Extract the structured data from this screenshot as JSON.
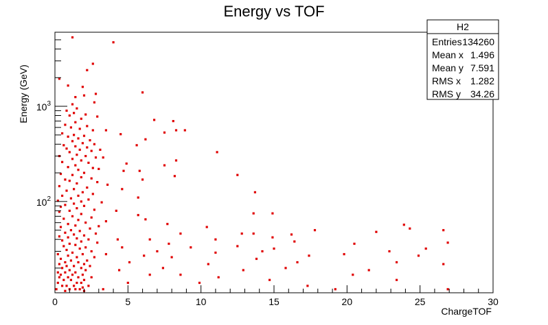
{
  "chart_data": {
    "type": "scatter",
    "title": "Energy vs TOF",
    "xlabel": "ChargeTOF",
    "ylabel": "Energy (GeV)",
    "xlim": [
      0,
      30
    ],
    "ylim": [
      11,
      6000
    ],
    "yscale": "log",
    "x_ticks": [
      0,
      5,
      10,
      15,
      20,
      25,
      30
    ],
    "y_tick_labels": [
      {
        "label": "10^2",
        "base": "10",
        "exp": "2",
        "value": 100
      },
      {
        "label": "10^3",
        "base": "10",
        "exp": "3",
        "value": 1000
      }
    ],
    "grid": false,
    "point_color": "#e00000",
    "stats": {
      "title": "H2",
      "rows": [
        {
          "label": "Entries",
          "value": "134260"
        },
        {
          "label": "Mean x",
          "value": "1.496"
        },
        {
          "label": "Mean y",
          "value": "7.591"
        },
        {
          "label": "RMS x",
          "value": "1.282"
        },
        {
          "label": "RMS y",
          "value": "34.26"
        }
      ]
    },
    "points": [
      [
        1.2,
        5300
      ],
      [
        4.0,
        4700
      ],
      [
        2.6,
        2800
      ],
      [
        2.2,
        2400
      ],
      [
        6.0,
        1400
      ],
      [
        0.3,
        1950
      ],
      [
        0.9,
        1650
      ],
      [
        1.9,
        1600
      ],
      [
        2.8,
        1350
      ],
      [
        1.4,
        1250
      ],
      [
        2.0,
        1300
      ],
      [
        2.7,
        1100
      ],
      [
        1.2,
        1050
      ],
      [
        1.5,
        950
      ],
      [
        0.8,
        900
      ],
      [
        1.3,
        850
      ],
      [
        2.1,
        820
      ],
      [
        1.0,
        800
      ],
      [
        2.9,
        780
      ],
      [
        1.8,
        740
      ],
      [
        6.8,
        720
      ],
      [
        8.1,
        700
      ],
      [
        1.4,
        680
      ],
      [
        0.7,
        640
      ],
      [
        2.2,
        620
      ],
      [
        1.1,
        600
      ],
      [
        1.7,
        580
      ],
      [
        2.6,
        560
      ],
      [
        3.5,
        560
      ],
      [
        8.3,
        560
      ],
      [
        8.9,
        560
      ],
      [
        0.5,
        520
      ],
      [
        1.3,
        500
      ],
      [
        2.0,
        490
      ],
      [
        4.5,
        510
      ],
      [
        7.5,
        530
      ],
      [
        0.9,
        480
      ],
      [
        1.6,
        460
      ],
      [
        2.4,
        440
      ],
      [
        1.2,
        430
      ],
      [
        6.2,
        450
      ],
      [
        1.9,
        410
      ],
      [
        2.7,
        400
      ],
      [
        0.6,
        390
      ],
      [
        5.6,
        390
      ],
      [
        1.4,
        380
      ],
      [
        2.2,
        370
      ],
      [
        0.8,
        360
      ],
      [
        1.7,
        350
      ],
      [
        3.1,
        350
      ],
      [
        2.5,
        340
      ],
      [
        11.1,
        330
      ],
      [
        1.0,
        330
      ],
      [
        1.5,
        310
      ],
      [
        2.1,
        300
      ],
      [
        0.3,
        300
      ],
      [
        2.8,
        290
      ],
      [
        3.3,
        290
      ],
      [
        1.2,
        280
      ],
      [
        1.8,
        270
      ],
      [
        8.3,
        270
      ],
      [
        0.5,
        260
      ],
      [
        2.3,
        255
      ],
      [
        4.9,
        250
      ],
      [
        1.4,
        240
      ],
      [
        7.5,
        240
      ],
      [
        0.9,
        230
      ],
      [
        2.6,
        225
      ],
      [
        3.0,
        220
      ],
      [
        1.6,
        215
      ],
      [
        4.7,
        210
      ],
      [
        5.8,
        210
      ],
      [
        2.0,
        200
      ],
      [
        0.4,
        195
      ],
      [
        1.2,
        190
      ],
      [
        12.5,
        190
      ],
      [
        8.2,
        185
      ],
      [
        1.8,
        180
      ],
      [
        2.5,
        175
      ],
      [
        0.7,
        170
      ],
      [
        6.0,
        170
      ],
      [
        1.0,
        165
      ],
      [
        2.9,
        160
      ],
      [
        1.5,
        155
      ],
      [
        3.6,
        150
      ],
      [
        0.3,
        145
      ],
      [
        2.2,
        140
      ],
      [
        1.3,
        135
      ],
      [
        4.6,
        135
      ],
      [
        0.8,
        130
      ],
      [
        1.9,
        125
      ],
      [
        13.7,
        125
      ],
      [
        2.6,
        120
      ],
      [
        0.5,
        115
      ],
      [
        1.6,
        115
      ],
      [
        5.7,
        110
      ],
      [
        1.1,
        108
      ],
      [
        2.3,
        105
      ],
      [
        0.2,
        102
      ],
      [
        1.8,
        100
      ],
      [
        3.2,
        98
      ],
      [
        1.3,
        95
      ],
      [
        0.7,
        92
      ],
      [
        2.0,
        90
      ],
      [
        0.4,
        88
      ],
      [
        1.5,
        85
      ],
      [
        2.7,
        82
      ],
      [
        1.0,
        80
      ],
      [
        4.2,
        80
      ],
      [
        0.3,
        78
      ],
      [
        13.6,
        75
      ],
      [
        14.9,
        75
      ],
      [
        1.8,
        74
      ],
      [
        5.7,
        72
      ],
      [
        1.2,
        70
      ],
      [
        2.5,
        68
      ],
      [
        0.6,
        66
      ],
      [
        6.2,
        65
      ],
      [
        1.6,
        64
      ],
      [
        3.5,
        62
      ],
      [
        2.1,
        60
      ],
      [
        0.9,
        58
      ],
      [
        7.7,
        58
      ],
      [
        1.4,
        56
      ],
      [
        3.0,
        55
      ],
      [
        23.9,
        57
      ],
      [
        0.4,
        54
      ],
      [
        10.4,
        54
      ],
      [
        2.4,
        52
      ],
      [
        1.1,
        50
      ],
      [
        17.8,
        50
      ],
      [
        26.6,
        50
      ],
      [
        1.7,
        49
      ],
      [
        22.0,
        48
      ],
      [
        24.3,
        52
      ],
      [
        0.7,
        47
      ],
      [
        2.8,
        46
      ],
      [
        12.8,
        46
      ],
      [
        1.3,
        45
      ],
      [
        13.6,
        46
      ],
      [
        8.6,
        46
      ],
      [
        2.0,
        44
      ],
      [
        0.3,
        43
      ],
      [
        0.9,
        42
      ],
      [
        14.9,
        42
      ],
      [
        16.2,
        45
      ],
      [
        1.5,
        41
      ],
      [
        4.3,
        40
      ],
      [
        2.3,
        40
      ],
      [
        6.5,
        40
      ],
      [
        11.0,
        40
      ],
      [
        0.5,
        39
      ],
      [
        1.8,
        38
      ],
      [
        16.4,
        38
      ],
      [
        2.9,
        37
      ],
      [
        1.0,
        36
      ],
      [
        7.8,
        36
      ],
      [
        20.5,
        36
      ],
      [
        26.9,
        37
      ],
      [
        1.4,
        35
      ],
      [
        0.6,
        34
      ],
      [
        2.1,
        33
      ],
      [
        12.5,
        34
      ],
      [
        4.6,
        33
      ],
      [
        1.7,
        32
      ],
      [
        9.3,
        33
      ],
      [
        15.0,
        32
      ],
      [
        0.8,
        31
      ],
      [
        2.5,
        30
      ],
      [
        14.2,
        30
      ],
      [
        7.0,
        30
      ],
      [
        1.2,
        29
      ],
      [
        22.9,
        30
      ],
      [
        25.4,
        32
      ],
      [
        0.2,
        28
      ],
      [
        1.9,
        28
      ],
      [
        11.0,
        29
      ],
      [
        3.5,
        28
      ],
      [
        0.9,
        27
      ],
      [
        6.1,
        27
      ],
      [
        19.8,
        28
      ],
      [
        1.5,
        26
      ],
      [
        2.7,
        26
      ],
      [
        17.4,
        27
      ],
      [
        0.4,
        25
      ],
      [
        8.0,
        26
      ],
      [
        24.9,
        27
      ],
      [
        1.1,
        24
      ],
      [
        2.2,
        24
      ],
      [
        13.8,
        25
      ],
      [
        0.7,
        23
      ],
      [
        16.6,
        23
      ],
      [
        1.6,
        23
      ],
      [
        5.1,
        23
      ],
      [
        23.4,
        23
      ],
      [
        2.0,
        22
      ],
      [
        0.3,
        22
      ],
      [
        1.3,
        21
      ],
      [
        10.5,
        22
      ],
      [
        26.6,
        22
      ],
      [
        0.8,
        21
      ],
      [
        2.4,
        21
      ],
      [
        1.8,
        20
      ],
      [
        7.4,
        20
      ],
      [
        0.5,
        20
      ],
      [
        15.8,
        20
      ],
      [
        1.0,
        19
      ],
      [
        21.5,
        19
      ],
      [
        2.1,
        19
      ],
      [
        0.2,
        18
      ],
      [
        4.4,
        19
      ],
      [
        1.4,
        18
      ],
      [
        12.9,
        19
      ],
      [
        0.7,
        18
      ],
      [
        1.9,
        17
      ],
      [
        0.4,
        17
      ],
      [
        1.2,
        17
      ],
      [
        20.4,
        17
      ],
      [
        2.5,
        16
      ],
      [
        0.9,
        16
      ],
      [
        6.5,
        17
      ],
      [
        8.6,
        17
      ],
      [
        1.6,
        16
      ],
      [
        0.3,
        16
      ],
      [
        11.2,
        16
      ],
      [
        1.1,
        15
      ],
      [
        23.4,
        15
      ],
      [
        0.6,
        15
      ],
      [
        2.0,
        15
      ],
      [
        14.7,
        15
      ],
      [
        1.5,
        14
      ],
      [
        0.2,
        14
      ],
      [
        1.8,
        14
      ],
      [
        5.0,
        14
      ],
      [
        9.9,
        14
      ],
      [
        0.8,
        13
      ],
      [
        1.3,
        13
      ],
      [
        2.3,
        13
      ],
      [
        17.3,
        13
      ],
      [
        0.5,
        13
      ],
      [
        1.0,
        12
      ],
      [
        1.7,
        12
      ],
      [
        26.9,
        12
      ],
      [
        0.1,
        12
      ],
      [
        3.3,
        12
      ],
      [
        19.2,
        12
      ],
      [
        1.4,
        12
      ],
      [
        0.7,
        11.5
      ],
      [
        2.0,
        11.5
      ],
      [
        1.9,
        12.5
      ]
    ]
  }
}
